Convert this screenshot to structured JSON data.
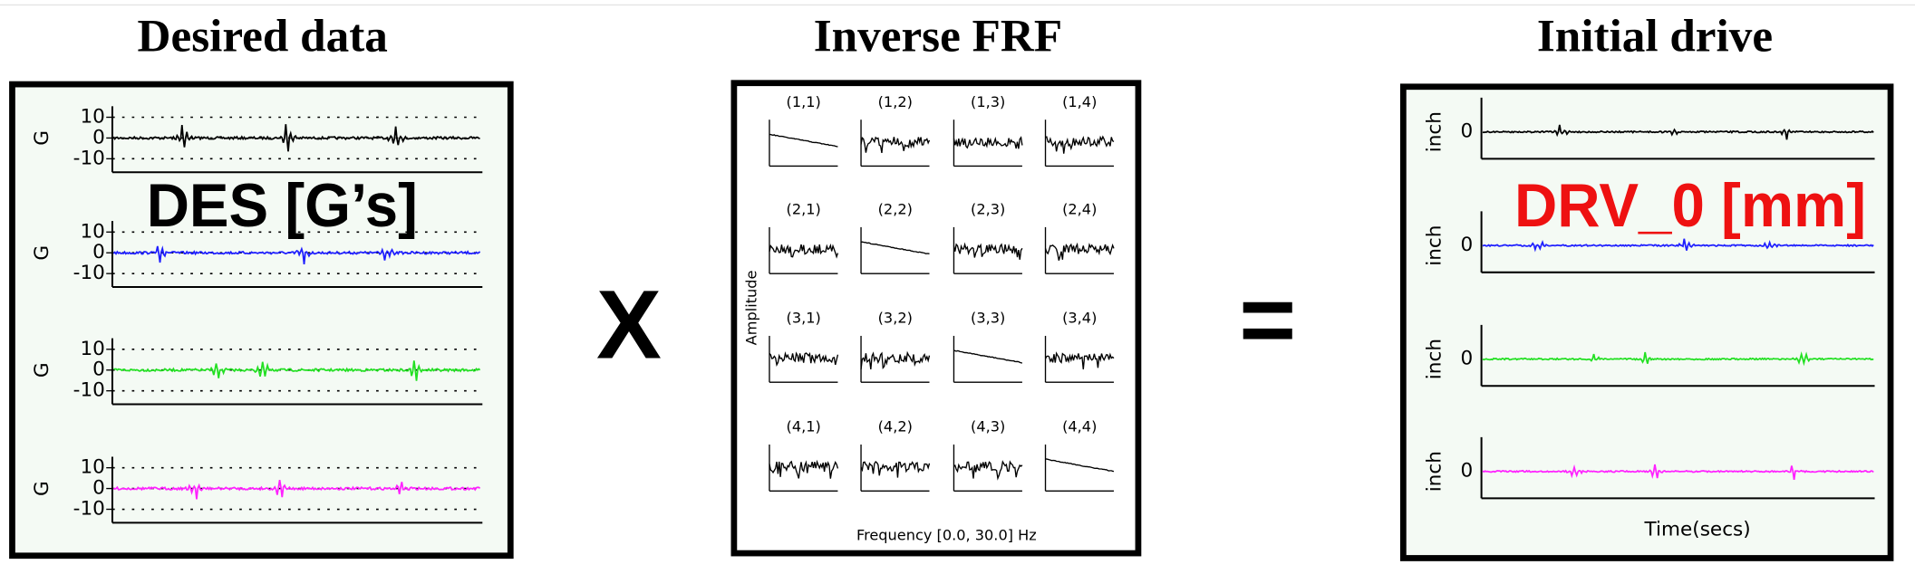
{
  "desired": {
    "title": "Desired data",
    "label": "DES  [G’s]",
    "y_label": "G",
    "yticks": [
      "10",
      "0",
      "-10"
    ],
    "traces": [
      "#000000",
      "#1f1fff",
      "#22e022",
      "#ff22ff"
    ]
  },
  "operator_multiply": "X",
  "frf": {
    "title": "Inverse FRF",
    "cells": [
      [
        "(1,1)",
        "(1,2)",
        "(1,3)",
        "(1,4)"
      ],
      [
        "(2,1)",
        "(2,2)",
        "(2,3)",
        "(2,4)"
      ],
      [
        "(3,1)",
        "(3,2)",
        "(3,3)",
        "(3,4)"
      ],
      [
        "(4,1)",
        "(4,2)",
        "(4,3)",
        "(4,4)"
      ]
    ],
    "y_label": "Amplitude",
    "x_label": "Frequency [0.0, 30.0] Hz"
  },
  "operator_equals": "=",
  "drive": {
    "title": "Initial drive",
    "label": "DRV_0  [mm]",
    "y_label": "inch",
    "ytick": "0",
    "x_label": "Time(secs)",
    "traces": [
      "#000000",
      "#1f1fff",
      "#22e022",
      "#ff22ff"
    ]
  }
}
